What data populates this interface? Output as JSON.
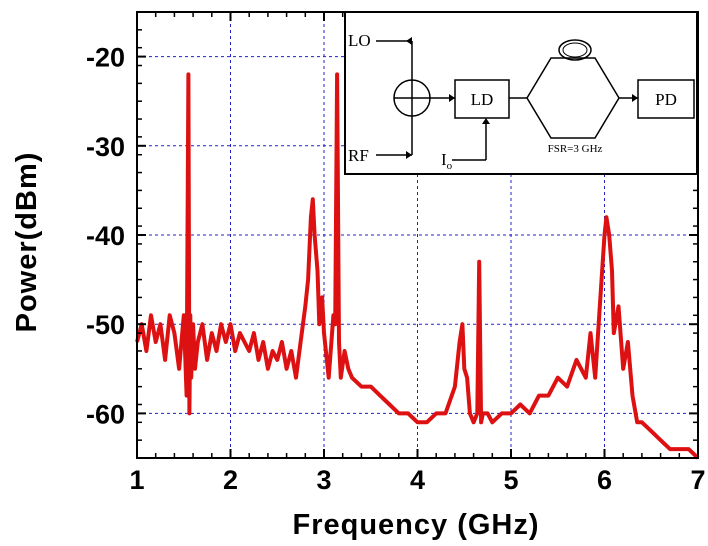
{
  "chart_data": {
    "type": "line",
    "title": "",
    "xlabel": "Frequency (GHz)",
    "ylabel": "Power(dBm)",
    "xlim": [
      1,
      7
    ],
    "ylim": [
      -65,
      -15
    ],
    "x_ticks": [
      "1",
      "2",
      "3",
      "4",
      "5",
      "6",
      "7"
    ],
    "y_ticks": [
      "-20",
      "-30",
      "-40",
      "-50",
      "-60"
    ],
    "grid": true,
    "line_color": "#dd1111",
    "grid_color": "#2222cc",
    "series": [
      {
        "x": [
          1.0,
          1.05,
          1.1,
          1.15,
          1.2,
          1.25,
          1.3,
          1.35,
          1.4,
          1.45,
          1.5,
          1.53,
          1.55,
          1.56,
          1.57,
          1.58,
          1.6,
          1.62,
          1.65,
          1.7,
          1.75,
          1.8,
          1.85,
          1.9,
          1.95,
          2.0,
          2.05,
          2.1,
          2.15,
          2.2,
          2.25,
          2.3,
          2.35,
          2.4,
          2.45,
          2.5,
          2.55,
          2.6,
          2.65,
          2.7,
          2.75,
          2.8,
          2.83,
          2.86,
          2.88,
          2.9,
          2.93,
          2.95,
          2.98,
          3.0,
          3.05,
          3.1,
          3.12,
          3.14,
          3.16,
          3.18,
          3.22,
          3.26,
          3.3,
          3.4,
          3.5,
          3.6,
          3.7,
          3.8,
          3.9,
          4.0,
          4.1,
          4.2,
          4.3,
          4.4,
          4.45,
          4.48,
          4.5,
          4.53,
          4.56,
          4.6,
          4.64,
          4.66,
          4.68,
          4.7,
          4.75,
          4.8,
          4.9,
          5.0,
          5.1,
          5.2,
          5.3,
          5.4,
          5.5,
          5.6,
          5.7,
          5.8,
          5.85,
          5.9,
          5.95,
          6.0,
          6.02,
          6.05,
          6.08,
          6.1,
          6.15,
          6.2,
          6.25,
          6.3,
          6.35,
          6.4,
          6.5,
          6.6,
          6.7,
          6.8,
          6.9,
          7.0
        ],
        "y": [
          -52,
          -50,
          -53,
          -49,
          -52,
          -50,
          -54,
          -49,
          -51,
          -55,
          -49,
          -58,
          -22,
          -60,
          -49,
          -56,
          -50,
          -55,
          -52,
          -50,
          -54,
          -51,
          -53,
          -50,
          -52,
          -50,
          -53,
          -51,
          -52,
          -53,
          -51,
          -54,
          -52,
          -55,
          -53,
          -54,
          -52,
          -55,
          -53,
          -56,
          -52,
          -48,
          -45,
          -38,
          -36,
          -40,
          -44,
          -50,
          -47,
          -51,
          -56,
          -49,
          -50,
          -22,
          -52,
          -56,
          -53,
          -55,
          -56,
          -57,
          -57,
          -58,
          -59,
          -60,
          -60,
          -61,
          -61,
          -60,
          -60,
          -57,
          -52,
          -50,
          -55,
          -56,
          -60,
          -61,
          -60,
          -43,
          -61,
          -60,
          -60,
          -61,
          -60,
          -60,
          -59,
          -60,
          -58,
          -58,
          -56,
          -57,
          -54,
          -56,
          -51,
          -56,
          -48,
          -40,
          -38,
          -40,
          -44,
          -51,
          -48,
          -55,
          -52,
          -58,
          -61,
          -61,
          -62,
          -63,
          -64,
          -64,
          -64,
          -65
        ]
      }
    ],
    "inset": {
      "labels": {
        "lo": "LO",
        "rf": "RF",
        "ld": "LD",
        "pd": "PD",
        "bias": "I",
        "bias_sub": "o",
        "fsr": "FSR=3 GHz"
      }
    }
  }
}
